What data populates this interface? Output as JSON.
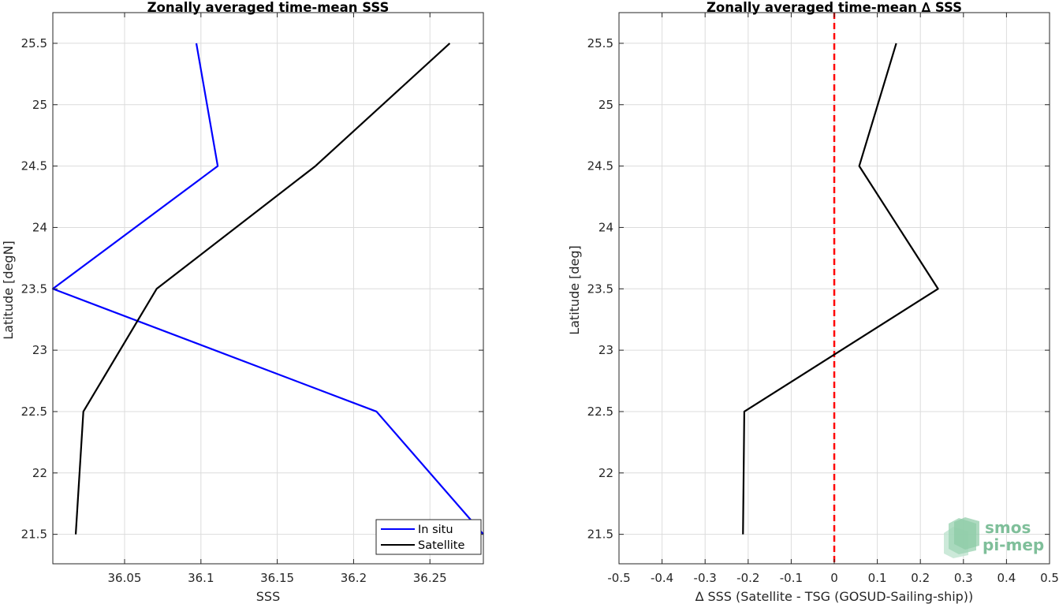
{
  "chart_data": [
    {
      "type": "line",
      "title": "Zonally averaged time-mean SSS",
      "xlabel": "SSS",
      "ylabel": "Latitude [degN]",
      "xlim": [
        36.003,
        36.285
      ],
      "ylim": [
        21.26,
        25.75
      ],
      "xticks": [
        "36.05",
        "36.1",
        "36.15",
        "36.2",
        "36.25"
      ],
      "yticks": [
        "21.5",
        "22",
        "22.5",
        "23",
        "23.5",
        "24",
        "24.5",
        "25",
        "25.5"
      ],
      "grid": true,
      "legend": "bottom-right",
      "series": [
        {
          "name": "In situ",
          "color": "#0000ff",
          "points": [
            [
              36.097,
              25.5
            ],
            [
              36.111,
              24.5
            ],
            [
              36.003,
              23.5
            ],
            [
              36.215,
              22.5
            ],
            [
              36.285,
              21.5
            ]
          ]
        },
        {
          "name": "Satellite",
          "color": "#000000",
          "points": [
            [
              36.263,
              25.5
            ],
            [
              36.175,
              24.5
            ],
            [
              36.071,
              23.5
            ],
            [
              36.023,
              22.5
            ],
            [
              36.018,
              21.5
            ]
          ]
        }
      ]
    },
    {
      "type": "line",
      "title": "Zonally averaged time-mean ∆ SSS",
      "xlabel": "∆ SSS (Satellite - TSG (GOSUD-Sailing-ship))",
      "ylabel": "Latitude [deg]",
      "xlim": [
        -0.5,
        0.5
      ],
      "ylim": [
        21.26,
        25.75
      ],
      "xticks": [
        "-0.5",
        "-0.4",
        "-0.3",
        "-0.2",
        "-0.1",
        "0",
        "0.1",
        "0.2",
        "0.3",
        "0.4",
        "0.5"
      ],
      "yticks": [
        "21.5",
        "22",
        "22.5",
        "23",
        "23.5",
        "24",
        "24.5",
        "25",
        "25.5"
      ],
      "grid": true,
      "zero_line": {
        "x": 0,
        "color": "#ff0000",
        "style": "dashed"
      },
      "series": [
        {
          "color": "#000000",
          "points": [
            [
              0.144,
              25.5
            ],
            [
              0.058,
              24.5
            ],
            [
              0.241,
              23.5
            ],
            [
              -0.209,
              22.5
            ],
            [
              -0.212,
              21.5
            ]
          ]
        }
      ]
    }
  ],
  "logo": {
    "line1": "smos",
    "line2": "pi-mep",
    "color": "#7fbf9a"
  }
}
